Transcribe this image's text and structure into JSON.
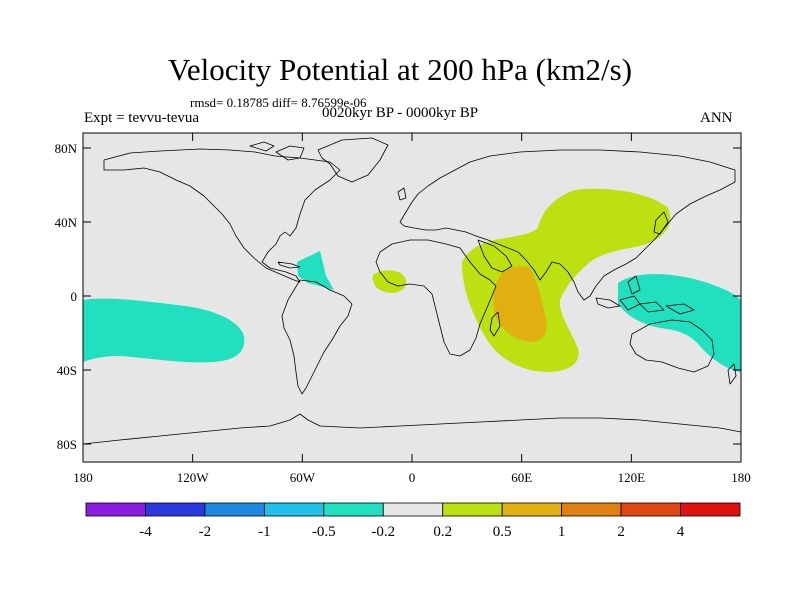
{
  "title": "Velocity Potential at 200 hPa (km2/s)",
  "stats": "rmsd= 0.18785 diff= 8.76599e-06",
  "expt": "Expt = tevvu-tevua",
  "period": "0020kyr BP - 0000kyr BP",
  "season": "ANN",
  "lat_labels": [
    "80N",
    "40N",
    "0",
    "40S",
    "80S"
  ],
  "lon_labels": [
    "180",
    "120W",
    "60W",
    "0",
    "60E",
    "120E",
    "180"
  ],
  "colorbar": {
    "colors": [
      "#8a1ee0",
      "#2a38e0",
      "#1e88e0",
      "#20c0e8",
      "#20e0c0",
      "#e6e6e6",
      "#bce010",
      "#e0b010",
      "#e08010",
      "#e04810",
      "#e01010"
    ],
    "labels": [
      "-4",
      "-2",
      "-1",
      "-0.5",
      "-0.2",
      "0.2",
      "0.5",
      "1",
      "2",
      "4"
    ]
  },
  "map": {
    "background": "#e6e6e6",
    "fills": [
      {
        "id": "central-pacific-negative",
        "level": "-0.5 to -0.2",
        "color": "#20e0c0"
      },
      {
        "id": "caribbean-negative",
        "level": "-0.5 to -0.2",
        "color": "#20e0c0"
      },
      {
        "id": "west-pacific-negative",
        "level": "-0.5 to -0.2",
        "color": "#20e0c0"
      },
      {
        "id": "west-africa-positive",
        "level": "0.2 to 0.5",
        "color": "#bce010"
      },
      {
        "id": "asia-indian-ocean-positive",
        "level": "0.2 to 0.5",
        "color": "#bce010"
      },
      {
        "id": "east-africa-core",
        "level": "0.5 to 1",
        "color": "#e0b010"
      }
    ]
  }
}
